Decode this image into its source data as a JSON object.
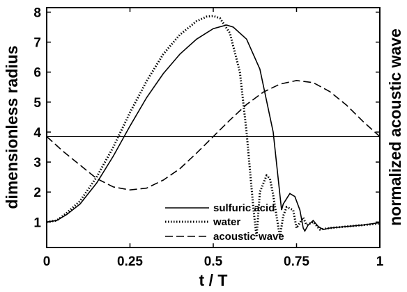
{
  "chart_data": {
    "type": "line",
    "xlabel": "t / T",
    "ylabel": "dimensionless radius",
    "y2label": "normalized acoustic wave",
    "xlim": [
      0,
      1
    ],
    "ylim": [
      0.15,
      8.15
    ],
    "x_ticks": [
      0,
      0.25,
      0.5,
      0.75,
      1
    ],
    "x_tick_labels": [
      "0",
      "0.25",
      "0.5",
      "0.75",
      "1"
    ],
    "y_ticks": [
      1,
      2,
      3,
      4,
      5,
      6,
      7,
      8
    ],
    "y_tick_labels": [
      "1",
      "2",
      "3",
      "4",
      "5",
      "6",
      "7",
      "8"
    ],
    "reference_line_y": 3.85,
    "legend_position": "bottom-left",
    "series": [
      {
        "name": "sulfuric acid",
        "style": "solid",
        "x": [
          0,
          0.03,
          0.06,
          0.1,
          0.15,
          0.2,
          0.25,
          0.3,
          0.35,
          0.4,
          0.45,
          0.5,
          0.54,
          0.56,
          0.6,
          0.64,
          0.68,
          0.705,
          0.71,
          0.73,
          0.745,
          0.76,
          0.77,
          0.775,
          0.785,
          0.8,
          0.815,
          0.83,
          0.85,
          0.9,
          0.95,
          1.0
        ],
        "y": [
          1.0,
          1.05,
          1.25,
          1.6,
          2.3,
          3.2,
          4.2,
          5.15,
          5.95,
          6.6,
          7.1,
          7.45,
          7.57,
          7.5,
          7.1,
          6.1,
          4.0,
          1.4,
          1.6,
          1.95,
          1.85,
          1.4,
          0.8,
          0.7,
          0.9,
          1.05,
          0.85,
          0.75,
          0.8,
          0.85,
          0.9,
          0.98
        ]
      },
      {
        "name": "water",
        "style": "dotted",
        "x": [
          0,
          0.03,
          0.06,
          0.1,
          0.15,
          0.2,
          0.25,
          0.3,
          0.35,
          0.4,
          0.45,
          0.48,
          0.5,
          0.52,
          0.55,
          0.58,
          0.6,
          0.62,
          0.63,
          0.64,
          0.66,
          0.67,
          0.68,
          0.7,
          0.71,
          0.72,
          0.74,
          0.75,
          0.77,
          0.78,
          0.8,
          0.82,
          0.85,
          0.9,
          0.95,
          1.0
        ],
        "y": [
          1.0,
          1.05,
          1.3,
          1.7,
          2.5,
          3.5,
          4.65,
          5.7,
          6.6,
          7.25,
          7.7,
          7.85,
          7.87,
          7.8,
          7.3,
          6.0,
          4.0,
          1.5,
          0.5,
          2.0,
          2.55,
          2.45,
          1.9,
          0.5,
          1.2,
          1.5,
          1.4,
          0.8,
          1.15,
          0.9,
          1.0,
          0.75,
          0.8,
          0.85,
          0.9,
          0.95
        ]
      },
      {
        "name": "acoustic wave",
        "style": "dashed",
        "x": [
          0,
          0.05,
          0.1,
          0.15,
          0.2,
          0.25,
          0.3,
          0.35,
          0.4,
          0.45,
          0.5,
          0.55,
          0.6,
          0.65,
          0.7,
          0.75,
          0.8,
          0.85,
          0.9,
          0.95,
          1.0
        ],
        "y": [
          3.85,
          3.35,
          2.9,
          2.45,
          2.17,
          2.07,
          2.13,
          2.4,
          2.78,
          3.3,
          3.85,
          4.4,
          4.92,
          5.33,
          5.6,
          5.72,
          5.65,
          5.35,
          4.9,
          4.35,
          3.85
        ]
      }
    ]
  }
}
